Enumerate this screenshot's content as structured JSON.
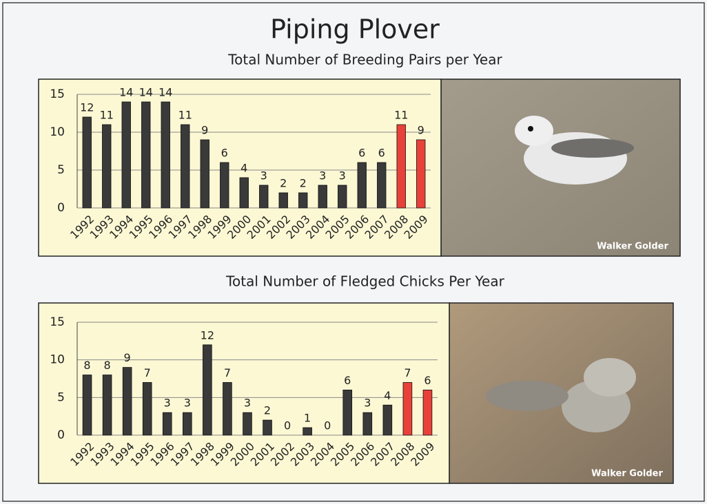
{
  "header": {
    "title": "Piping Plover"
  },
  "chart_data": [
    {
      "type": "bar",
      "title": "Total Number of Breeding Pairs per Year",
      "categories": [
        "1992",
        "1993",
        "1994",
        "1995",
        "1996",
        "1997",
        "1998",
        "1999",
        "2000",
        "2001",
        "2002",
        "2003",
        "2004",
        "2005",
        "2006",
        "2007",
        "2008",
        "2009"
      ],
      "values": [
        12,
        11,
        14,
        14,
        14,
        11,
        9,
        6,
        4,
        3,
        2,
        2,
        3,
        3,
        6,
        6,
        11,
        9
      ],
      "colors": [
        "#3a3a3a",
        "#3a3a3a",
        "#3a3a3a",
        "#3a3a3a",
        "#3a3a3a",
        "#3a3a3a",
        "#3a3a3a",
        "#3a3a3a",
        "#3a3a3a",
        "#3a3a3a",
        "#3a3a3a",
        "#3a3a3a",
        "#3a3a3a",
        "#3a3a3a",
        "#3a3a3a",
        "#3a3a3a",
        "#e8413a",
        "#e8413a"
      ],
      "ylim": [
        0,
        15
      ],
      "yticks": [
        0,
        5,
        10,
        15
      ],
      "grid": true
    },
    {
      "type": "bar",
      "title": "Total Number of Fledged Chicks Per Year",
      "categories": [
        "1992",
        "1993",
        "1994",
        "1995",
        "1996",
        "1997",
        "1998",
        "1999",
        "2000",
        "2001",
        "2002",
        "2003",
        "2004",
        "2005",
        "2006",
        "2007",
        "2008",
        "2009"
      ],
      "values": [
        8,
        8,
        9,
        7,
        3,
        3,
        12,
        7,
        3,
        2,
        0,
        1,
        0,
        6,
        3,
        4,
        7,
        6
      ],
      "colors": [
        "#3a3a3a",
        "#3a3a3a",
        "#3a3a3a",
        "#3a3a3a",
        "#3a3a3a",
        "#3a3a3a",
        "#3a3a3a",
        "#3a3a3a",
        "#3a3a3a",
        "#3a3a3a",
        "#3a3a3a",
        "#3a3a3a",
        "#3a3a3a",
        "#3a3a3a",
        "#3a3a3a",
        "#3a3a3a",
        "#e8413a",
        "#e8413a"
      ],
      "ylim": [
        0,
        15
      ],
      "yticks": [
        0,
        5,
        10,
        15
      ],
      "grid": true
    }
  ],
  "photos": [
    {
      "credit": "Walker Golder"
    },
    {
      "credit": "Walker Golder"
    }
  ]
}
